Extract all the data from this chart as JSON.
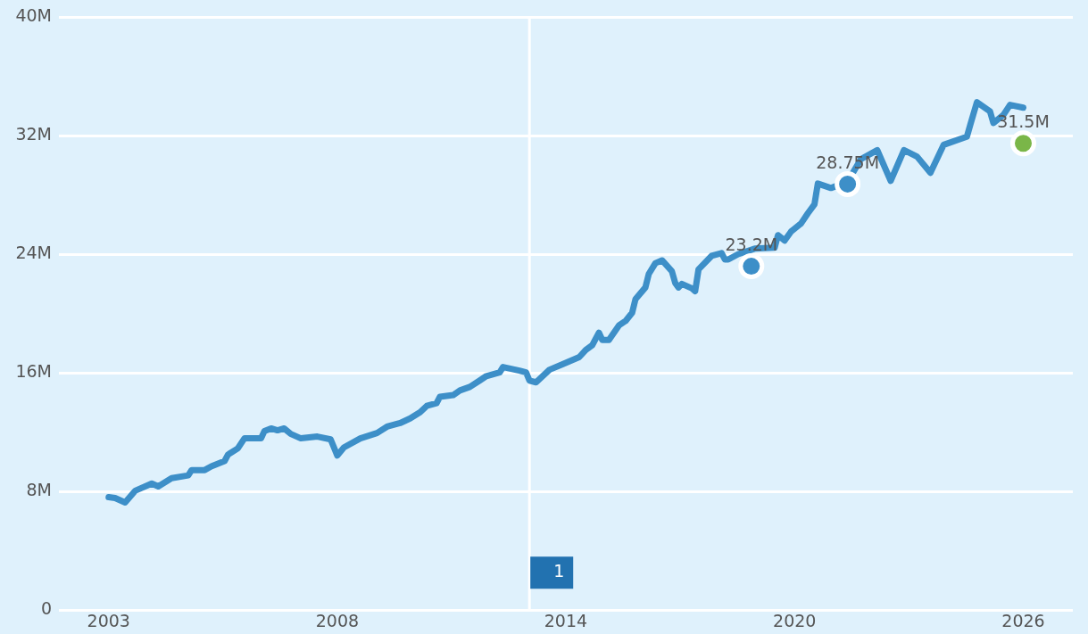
{
  "chart_data": {
    "type": "line",
    "ylim": [
      0,
      40
    ],
    "yticks": [
      {
        "value": 0,
        "label": "0"
      },
      {
        "value": 8,
        "label": "8M"
      },
      {
        "value": 16,
        "label": "16M"
      },
      {
        "value": 24,
        "label": "24M"
      },
      {
        "value": 32,
        "label": "32M"
      },
      {
        "value": 40,
        "label": "40M"
      }
    ],
    "xlim": [
      "2001-10",
      "2027-04"
    ],
    "xticks": [
      {
        "value": "2003-01",
        "label": "2003"
      },
      {
        "value": "2008-10",
        "label": "2008"
      },
      {
        "value": "2014-07",
        "label": "2014"
      },
      {
        "value": "2020-04",
        "label": "2020"
      },
      {
        "value": "2026-01",
        "label": "2026"
      }
    ],
    "grid": "y",
    "legend": false,
    "line_style": "solid",
    "marker": "none",
    "ref_lines": [
      {
        "axis": "x",
        "value": "2013-08",
        "color": "#ffffff"
      }
    ],
    "annotations": [
      {
        "text": "1",
        "x": "2013-08"
      }
    ],
    "series": [
      {
        "color": "#3d8fc8",
        "x": [
          "2003-01",
          "2003-03",
          "2003-06",
          "2003-09",
          "2004-02",
          "2004-04",
          "2004-08",
          "2005-01",
          "2005-02",
          "2005-06",
          "2005-08",
          "2005-12",
          "2006-01",
          "2006-04",
          "2006-06",
          "2006-08",
          "2006-11",
          "2006-12",
          "2007-02",
          "2007-04",
          "2007-06",
          "2007-08",
          "2007-11",
          "2008-04",
          "2008-08",
          "2008-10",
          "2008-12",
          "2009-05",
          "2009-10",
          "2010-01",
          "2010-05",
          "2010-08",
          "2010-11",
          "2011-01",
          "2011-04",
          "2011-05",
          "2011-09",
          "2011-11",
          "2012-02",
          "2012-05",
          "2012-07",
          "2012-11",
          "2012-12",
          "2013-05",
          "2013-07",
          "2013-08",
          "2013-10",
          "2014-02",
          "2014-06",
          "2014-11",
          "2015-01",
          "2015-03",
          "2015-05",
          "2015-06",
          "2015-08",
          "2015-11",
          "2016-01",
          "2016-03",
          "2016-04",
          "2016-07",
          "2016-08",
          "2016-10",
          "2016-12",
          "2017-03",
          "2017-04",
          "2017-05",
          "2017-06",
          "2017-09",
          "2017-10",
          "2017-11",
          "2018-03",
          "2018-06",
          "2018-07",
          "2018-08",
          "2018-11",
          "2019-04",
          "2019-10",
          "2019-11",
          "2020-01",
          "2020-03",
          "2020-06",
          "2020-08",
          "2020-10",
          "2020-11",
          "2021-03",
          "2021-08",
          "2021-12",
          "2022-05",
          "2022-09",
          "2023-01",
          "2023-05",
          "2023-09",
          "2024-01",
          "2024-08",
          "2024-09",
          "2024-11",
          "2025-03",
          "2025-04",
          "2025-07",
          "2025-09",
          "2026-01"
        ],
        "values": [
          7.62,
          7.56,
          7.26,
          8.05,
          8.54,
          8.35,
          8.9,
          9.09,
          9.45,
          9.45,
          9.7,
          10.06,
          10.49,
          10.91,
          11.59,
          11.59,
          11.59,
          12.07,
          12.26,
          12.13,
          12.26,
          11.89,
          11.59,
          11.71,
          11.52,
          10.43,
          10.98,
          11.59,
          11.95,
          12.38,
          12.62,
          12.93,
          13.35,
          13.78,
          13.96,
          14.39,
          14.51,
          14.82,
          15.06,
          15.49,
          15.79,
          16.04,
          16.4,
          16.16,
          16.04,
          15.49,
          15.37,
          16.22,
          16.59,
          17.07,
          17.56,
          17.87,
          18.72,
          18.23,
          18.23,
          19.21,
          19.51,
          20.06,
          20.98,
          21.77,
          22.68,
          23.41,
          23.6,
          22.87,
          22.07,
          21.77,
          22.01,
          21.71,
          21.52,
          22.99,
          23.9,
          24.09,
          23.66,
          23.66,
          24.02,
          24.39,
          24.45,
          25.3,
          24.94,
          25.55,
          26.1,
          26.77,
          27.38,
          28.78,
          28.48,
          28.9,
          30.43,
          31.04,
          28.96,
          31.04,
          30.6,
          29.51,
          31.4,
          31.95,
          32.74,
          34.27,
          33.66,
          32.87,
          33.4,
          34.09,
          33.9
        ]
      },
      {
        "type": "scatter",
        "color": "#3d8fc8",
        "marker": "circle",
        "x": [
          "2019-03",
          "2021-08"
        ],
        "values": [
          23.2,
          28.75
        ],
        "value_labels": [
          "23.2M",
          "28.75M"
        ]
      },
      {
        "type": "scatter",
        "color": "#7ab648",
        "marker": "circle",
        "x": [
          "2026-01"
        ],
        "values": [
          31.5
        ],
        "value_labels": [
          "31.5M"
        ]
      }
    ]
  }
}
